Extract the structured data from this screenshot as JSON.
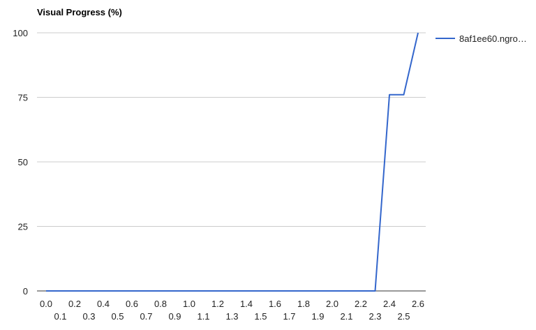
{
  "chart_data": {
    "type": "line",
    "title": "Visual Progress (%)",
    "xlabel": "",
    "ylabel": "",
    "x": [
      0.0,
      0.1,
      0.2,
      0.3,
      0.4,
      0.5,
      0.6,
      0.7,
      0.8,
      0.9,
      1.0,
      1.1,
      1.2,
      1.3,
      1.4,
      1.5,
      1.6,
      1.7,
      1.8,
      1.9,
      2.0,
      2.1,
      2.2,
      2.3,
      2.4,
      2.5,
      2.6
    ],
    "x_tick_labels": [
      "0.0",
      "0.1",
      "0.2",
      "0.3",
      "0.4",
      "0.5",
      "0.6",
      "0.7",
      "0.8",
      "0.9",
      "1.0",
      "1.1",
      "1.2",
      "1.3",
      "1.4",
      "1.5",
      "1.6",
      "1.7",
      "1.8",
      "1.9",
      "2.0",
      "2.1",
      "2.2",
      "2.3",
      "2.4",
      "2.5",
      "2.6"
    ],
    "y_ticks": [
      0,
      25,
      50,
      75,
      100
    ],
    "ylim": [
      0,
      100
    ],
    "series": [
      {
        "name": "8af1ee60.ngro…",
        "color": "#3366cc",
        "values": [
          0,
          0,
          0,
          0,
          0,
          0,
          0,
          0,
          0,
          0,
          0,
          0,
          0,
          0,
          0,
          0,
          0,
          0,
          0,
          0,
          0,
          0,
          0,
          0,
          76,
          76,
          100
        ]
      }
    ],
    "grid": true,
    "legend_position": "right"
  }
}
